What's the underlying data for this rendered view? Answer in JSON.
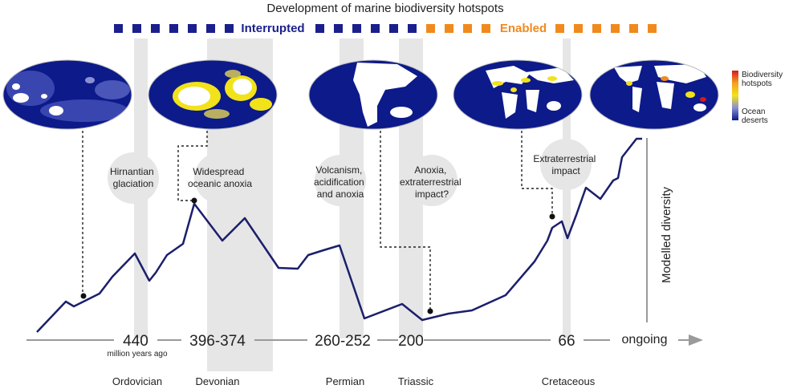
{
  "title": "Development of marine biodiversity hotspots",
  "phases": {
    "interrupted": "Interrupted",
    "enabled": "Enabled",
    "interrupted_color": "#1a1f8c",
    "enabled_color": "#f08a1c"
  },
  "legend": {
    "top": "Biodiversity hotspots",
    "bottom": "Ocean deserts",
    "top_line1": "Biodiversity",
    "top_line2": "hotspots",
    "bottom_line1": "Ocean",
    "bottom_line2": "deserts"
  },
  "y_axis_label": "Modelled diversity",
  "events": [
    {
      "line1": "Hirnantian",
      "line2": "glaciation",
      "line3": ""
    },
    {
      "line1": "Widespread",
      "line2": "oceanic anoxia",
      "line3": ""
    },
    {
      "line1": "Volcanism,",
      "line2": "acidification",
      "line3": "and anoxia"
    },
    {
      "line1": "Anoxia,",
      "line2": "extraterrestrial",
      "line3": "impact?"
    },
    {
      "line1": "Extraterrestrial",
      "line2": "impact",
      "line3": ""
    }
  ],
  "timeline": {
    "ticks": [
      "440",
      "396-374",
      "260-252",
      "200",
      "66",
      "ongoing"
    ],
    "unit": "million years ago"
  },
  "periods": [
    "Ordovician",
    "Devonian",
    "Permian",
    "Triassic",
    "Cretaceous"
  ],
  "colors": {
    "curve": "#1b1f6b",
    "band": "#e6e6e6",
    "ocean": "#0c1a8a",
    "land": "#ffffff",
    "hotspot": "#f2e21a",
    "axis": "#9a9a9a"
  }
}
